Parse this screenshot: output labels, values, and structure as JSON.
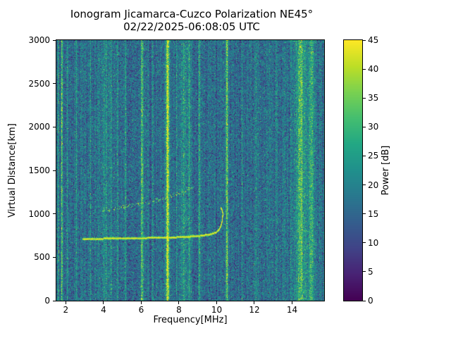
{
  "chart_data": {
    "type": "heatmap",
    "title": "Ionogram Jicamarca-Cuzco Polarization NE45°",
    "subtitle": "02/22/2025-06:08:05 UTC",
    "xlabel": "Frequency[MHz]",
    "ylabel": "Virtual Distance[km]",
    "colorbar_label": "Power [dB]",
    "colormap": "viridis",
    "grid": false,
    "legend": false,
    "x_range": [
      1.5,
      15.7
    ],
    "y_range": [
      0,
      3000
    ],
    "z_range": [
      0,
      45
    ],
    "x_ticks": [
      2,
      4,
      6,
      8,
      10,
      12,
      14
    ],
    "y_ticks": [
      0,
      500,
      1000,
      1500,
      2000,
      2500,
      3000
    ],
    "colorbar_ticks": [
      0,
      5,
      10,
      15,
      20,
      25,
      30,
      35,
      40,
      45
    ],
    "background_color": "#ffffff",
    "colormap_stops": [
      [
        0.0,
        68,
        1,
        84
      ],
      [
        0.1,
        72,
        35,
        116
      ],
      [
        0.2,
        64,
        67,
        135
      ],
      [
        0.3,
        52,
        94,
        141
      ],
      [
        0.4,
        41,
        120,
        142
      ],
      [
        0.5,
        32,
        144,
        140
      ],
      [
        0.6,
        34,
        167,
        132
      ],
      [
        0.7,
        68,
        190,
        112
      ],
      [
        0.8,
        121,
        209,
        81
      ],
      [
        0.9,
        189,
        222,
        38
      ],
      [
        1.0,
        253,
        231,
        37
      ]
    ],
    "noise": {
      "mean": 16,
      "sd": 5.5,
      "seed": 42,
      "column_striping_db": 1.8
    },
    "rfi_bands": [
      {
        "freq": 1.62,
        "sigma": 0.02,
        "amp": 12
      },
      {
        "freq": 1.8,
        "sigma": 0.03,
        "amp": 22
      },
      {
        "freq": 2.08,
        "sigma": 0.02,
        "amp": 6
      },
      {
        "freq": 2.55,
        "sigma": 0.025,
        "amp": 8
      },
      {
        "freq": 3.32,
        "sigma": 0.03,
        "amp": 5
      },
      {
        "freq": 4.05,
        "sigma": 0.2,
        "amp": 5
      },
      {
        "freq": 4.4,
        "sigma": 0.03,
        "amp": 6
      },
      {
        "freq": 4.75,
        "sigma": 0.03,
        "amp": 10
      },
      {
        "freq": 5.18,
        "sigma": 0.03,
        "amp": 6
      },
      {
        "freq": 6.05,
        "sigma": 0.04,
        "amp": 24
      },
      {
        "freq": 6.62,
        "sigma": 0.03,
        "amp": 7
      },
      {
        "freq": 7.4,
        "sigma": 0.06,
        "amp": 30
      },
      {
        "freq": 7.88,
        "sigma": 0.03,
        "amp": 8
      },
      {
        "freq": 8.25,
        "sigma": 0.12,
        "amp": 9
      },
      {
        "freq": 8.55,
        "sigma": 0.035,
        "amp": 12
      },
      {
        "freq": 9.08,
        "sigma": 0.04,
        "amp": 13
      },
      {
        "freq": 9.6,
        "sigma": 0.03,
        "amp": 5
      },
      {
        "freq": 10.55,
        "sigma": 0.04,
        "amp": 24
      },
      {
        "freq": 11.35,
        "sigma": 0.05,
        "amp": 5
      },
      {
        "freq": 12.08,
        "sigma": 0.05,
        "amp": 6
      },
      {
        "freq": 13.15,
        "sigma": 0.06,
        "amp": 4
      },
      {
        "freq": 14.55,
        "sigma": 0.45,
        "amp": 8
      },
      {
        "freq": 14.45,
        "sigma": 0.09,
        "amp": 12
      },
      {
        "freq": 15.05,
        "sigma": 0.08,
        "amp": 9
      }
    ],
    "traces": [
      {
        "name": "F-region main echo trace",
        "style": "solid",
        "peak_db": 45,
        "points": [
          [
            2.9,
            712
          ],
          [
            3.6,
            716
          ],
          [
            4.6,
            720
          ],
          [
            5.6,
            723
          ],
          [
            6.6,
            727
          ],
          [
            7.6,
            731
          ],
          [
            8.4,
            739
          ],
          [
            9.1,
            750
          ],
          [
            9.6,
            765
          ],
          [
            9.95,
            790
          ],
          [
            10.12,
            825
          ],
          [
            10.22,
            870
          ],
          [
            10.28,
            930
          ],
          [
            10.31,
            1000
          ],
          [
            10.29,
            1045
          ],
          [
            10.2,
            1068
          ]
        ]
      },
      {
        "name": "upper diffuse echo trace",
        "style": "dotted",
        "peak_db": 44,
        "points": [
          [
            3.7,
            1030
          ],
          [
            4.3,
            1055
          ],
          [
            5.1,
            1090
          ],
          [
            6.1,
            1130
          ],
          [
            7.1,
            1180
          ],
          [
            7.9,
            1230
          ],
          [
            8.4,
            1275
          ],
          [
            8.68,
            1308
          ]
        ]
      }
    ]
  }
}
